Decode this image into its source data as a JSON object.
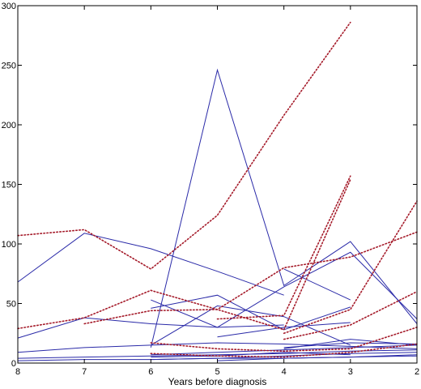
{
  "chart_data": {
    "type": "line",
    "title": "",
    "xlabel": "Years before diagnosis",
    "ylabel": "",
    "xlim": [
      8,
      2
    ],
    "ylim": [
      0,
      300
    ],
    "x_reversed": true,
    "x_ticks": [
      8,
      7,
      6,
      5,
      4,
      3,
      2
    ],
    "y_ticks": [
      0,
      50,
      100,
      150,
      200,
      250,
      300
    ],
    "grid": false,
    "legend": "none",
    "colors": {
      "solid_series": "#2a2aa8",
      "dotted_series": "#a51b2a",
      "axis": "#000000",
      "background": "#ffffff"
    },
    "line_styles": {
      "solid": "solid",
      "dotted": "dotted"
    },
    "series": [
      {
        "style": "solid",
        "x": [
          8,
          7,
          6,
          5,
          4
        ],
        "y": [
          68,
          109,
          96,
          77,
          57
        ]
      },
      {
        "style": "solid",
        "x": [
          6,
          5,
          4,
          3,
          2
        ],
        "y": [
          13,
          246,
          65,
          102,
          33
        ]
      },
      {
        "style": "solid",
        "x": [
          8,
          7,
          6,
          5,
          4
        ],
        "y": [
          21,
          38,
          33,
          30,
          32
        ]
      },
      {
        "style": "solid",
        "x": [
          6,
          5,
          4,
          3,
          2
        ],
        "y": [
          53,
          30,
          64,
          93,
          37
        ]
      },
      {
        "style": "solid",
        "x": [
          6,
          5,
          4,
          3
        ],
        "y": [
          46,
          57,
          28,
          47
        ]
      },
      {
        "style": "solid",
        "x": [
          6,
          5,
          4,
          3
        ],
        "y": [
          15,
          48,
          39,
          15
        ]
      },
      {
        "style": "solid",
        "x": [
          4,
          3
        ],
        "y": [
          79,
          53
        ]
      },
      {
        "style": "solid",
        "x": [
          5,
          4,
          3
        ],
        "y": [
          22,
          30,
          34
        ]
      },
      {
        "style": "solid",
        "x": [
          8,
          7,
          6,
          5,
          4,
          3,
          2
        ],
        "y": [
          9,
          13,
          15,
          17,
          16,
          14,
          12
        ]
      },
      {
        "style": "solid",
        "x": [
          8,
          7,
          6,
          5,
          4,
          3,
          2
        ],
        "y": [
          4,
          5,
          6,
          7,
          8,
          10,
          11
        ]
      },
      {
        "style": "solid",
        "x": [
          6,
          5,
          4,
          3,
          2
        ],
        "y": [
          7,
          9,
          11,
          13,
          15
        ]
      },
      {
        "style": "solid",
        "x": [
          6,
          5,
          4,
          3,
          2
        ],
        "y": [
          3,
          4,
          6,
          8,
          9
        ]
      },
      {
        "style": "solid",
        "x": [
          5,
          4,
          3,
          2
        ],
        "y": [
          2,
          4,
          5,
          7
        ]
      },
      {
        "style": "solid",
        "x": [
          4,
          3,
          2
        ],
        "y": [
          12,
          20,
          15
        ]
      },
      {
        "style": "solid",
        "x": [
          4,
          3,
          2
        ],
        "y": [
          13,
          17,
          16
        ]
      },
      {
        "style": "solid",
        "x": [
          8,
          7,
          6,
          5,
          4,
          3,
          2
        ],
        "y": [
          2,
          3,
          3,
          4,
          4,
          5,
          6
        ]
      },
      {
        "style": "solid",
        "x": [
          6,
          5,
          4,
          3
        ],
        "y": [
          5,
          6,
          9,
          7
        ]
      },
      {
        "style": "dotted",
        "x": [
          8,
          7,
          6,
          5,
          4,
          3
        ],
        "y": [
          107,
          112,
          79,
          124,
          208,
          286
        ]
      },
      {
        "style": "dotted",
        "x": [
          8,
          7,
          6,
          5,
          4,
          3,
          2
        ],
        "y": [
          29,
          38,
          61,
          45,
          80,
          89,
          110
        ]
      },
      {
        "style": "dotted",
        "x": [
          7,
          6,
          5,
          4,
          3
        ],
        "y": [
          33,
          44,
          45,
          28,
          154
        ]
      },
      {
        "style": "dotted",
        "x": [
          5,
          4,
          3
        ],
        "y": [
          37,
          40,
          157
        ]
      },
      {
        "style": "dotted",
        "x": [
          4,
          3,
          2
        ],
        "y": [
          25,
          45,
          136
        ]
      },
      {
        "style": "dotted",
        "x": [
          4,
          3,
          2
        ],
        "y": [
          20,
          32,
          60
        ]
      },
      {
        "style": "dotted",
        "x": [
          6,
          5,
          4,
          3,
          2
        ],
        "y": [
          17,
          12,
          10,
          12,
          30
        ]
      },
      {
        "style": "dotted",
        "x": [
          6,
          5,
          4,
          3,
          2
        ],
        "y": [
          8,
          6,
          5,
          9,
          16
        ]
      }
    ]
  }
}
